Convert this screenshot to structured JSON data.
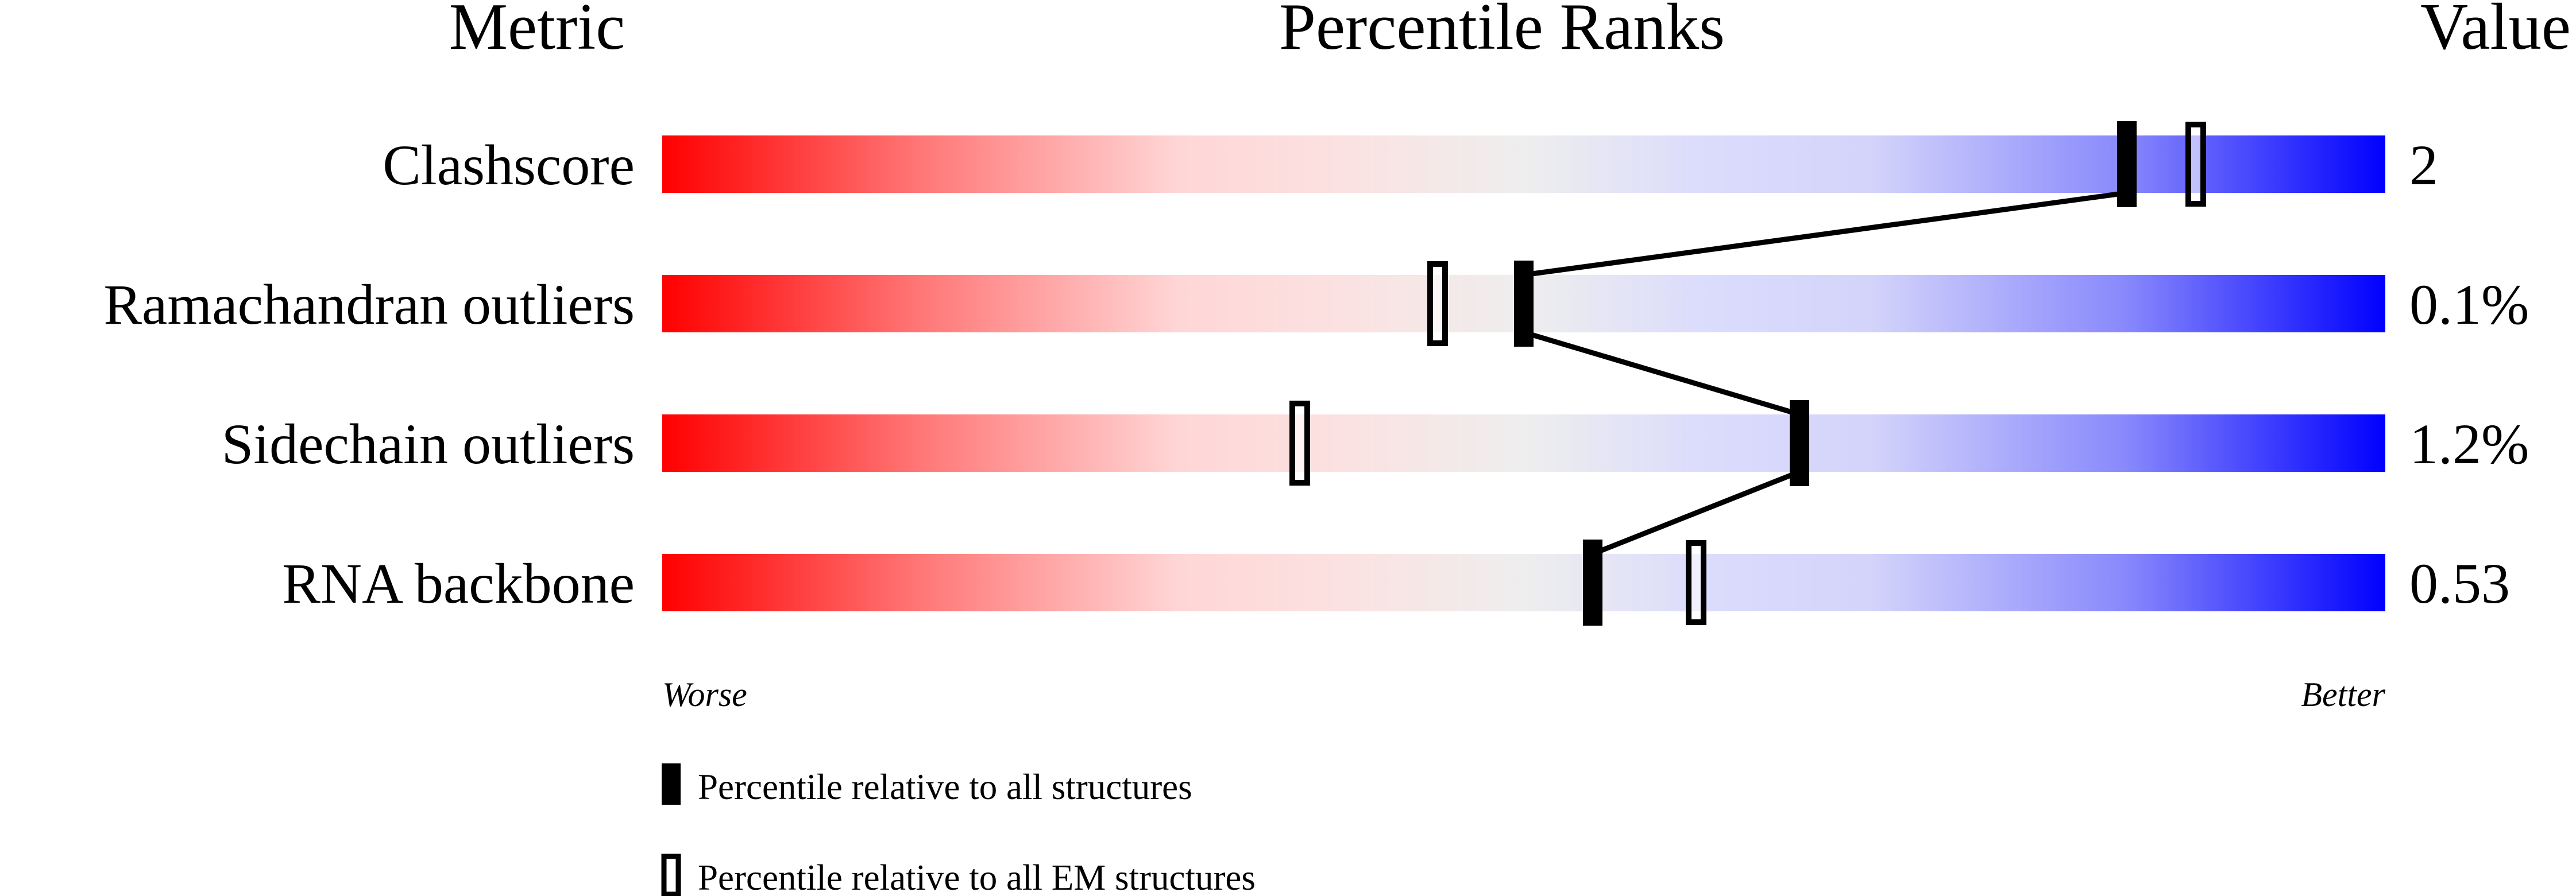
{
  "chart_data": {
    "type": "percentile-ranks",
    "headers": {
      "metric": "Metric",
      "ranks": "Percentile Ranks",
      "value": "Value"
    },
    "xlim": [
      0,
      100
    ],
    "axis_labels": {
      "left": "Worse",
      "right": "Better"
    },
    "colors": {
      "worse": "#ff0000",
      "middle": "#eeeeee",
      "better": "#0000ff",
      "marker": "#000000"
    },
    "metrics": [
      {
        "name": "Clashscore",
        "value": "2",
        "percentile_all": 85,
        "percentile_em": 89
      },
      {
        "name": "Ramachandran outliers",
        "value": "0.1%",
        "percentile_all": 50,
        "percentile_em": 45
      },
      {
        "name": "Sidechain outliers",
        "value": "1.2%",
        "percentile_all": 66,
        "percentile_em": 37
      },
      {
        "name": "RNA backbone",
        "value": "0.53",
        "percentile_all": 54,
        "percentile_em": 60
      }
    ],
    "legend": [
      {
        "marker": "filled",
        "label": "Percentile relative to all structures"
      },
      {
        "marker": "open",
        "label": "Percentile relative to all EM structures"
      }
    ]
  }
}
